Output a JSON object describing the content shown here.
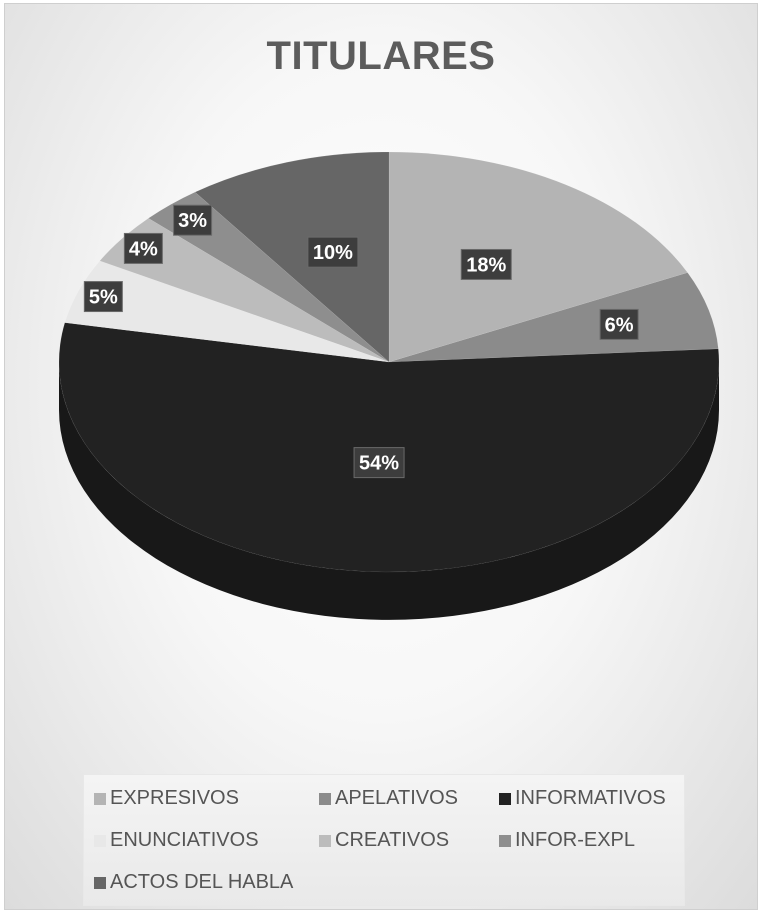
{
  "chart_data": {
    "type": "pie",
    "title": "TITULARES",
    "categories": [
      "EXPRESIVOS",
      "APELATIVOS",
      "INFORMATIVOS",
      "ENUNCIATIVOS",
      "CREATIVOS",
      "INFOR-EXPL",
      "ACTOS DEL HABLA"
    ],
    "values": [
      18,
      6,
      54,
      5,
      4,
      3,
      10
    ],
    "data_labels": [
      "18%",
      "6%",
      "54%",
      "5%",
      "4%",
      "3%",
      "10%"
    ],
    "colors": [
      "#b4b4b4",
      "#8b8b8b",
      "#222222",
      "#e8e8e8",
      "#bcbcbc",
      "#8e8e8e",
      "#666666"
    ],
    "legend_position": "bottom",
    "style": "3d"
  }
}
